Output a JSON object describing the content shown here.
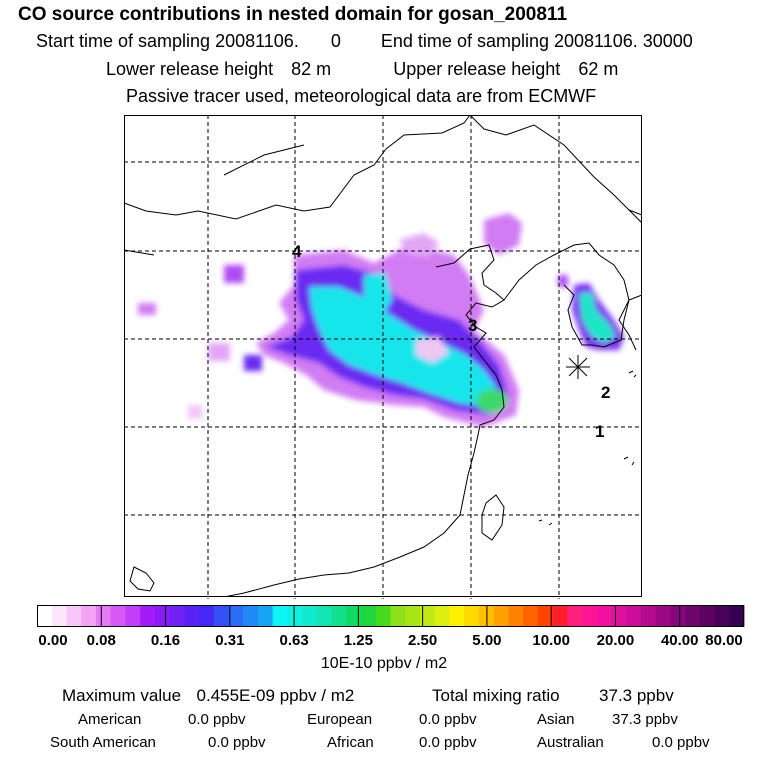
{
  "header": {
    "title": "CO  source contributions in nested domain for gosan_200811",
    "start_label": "Start time of sampling 20081106.",
    "start_value": "0",
    "end_label": "End time of sampling 20081106. 30000",
    "lower_label": "Lower release height",
    "lower_value": "82 m",
    "upper_label": "Upper release height",
    "upper_value": "62 m",
    "tracer_note": "Passive tracer used, meteorological data are from ECMWF"
  },
  "map": {
    "labels": [
      {
        "text": "4"
      },
      {
        "text": "3"
      },
      {
        "text": "2"
      },
      {
        "text": "1"
      }
    ],
    "receptor_marker": "asterisk-icon",
    "grid": "dashed"
  },
  "colorbar": {
    "tick_labels": [
      "0.00",
      "0.08",
      "0.16",
      "0.31",
      "0.63",
      "1.25",
      "2.50",
      "5.00",
      "10.00",
      "20.00",
      "40.00",
      "80.00"
    ],
    "units": "10E-10 ppbv / m2",
    "colors": [
      "#ffffff",
      "#fde6fd",
      "#f8c7f8",
      "#f3a4f3",
      "#e679f6",
      "#d659f6",
      "#c23ff8",
      "#a41bf6",
      "#8a1af7",
      "#7120f6",
      "#5a23f6",
      "#4428f6",
      "#3350f6",
      "#2a6ef6",
      "#1f8af6",
      "#17a6f6",
      "#0ff5f5",
      "#0ff0e0",
      "#10ebcd",
      "#12e5b5",
      "#12e08c",
      "#10dc62",
      "#1ed63d",
      "#46d91c",
      "#8ee018",
      "#a6e414",
      "#c2e812",
      "#dcef0f",
      "#fff200",
      "#ffd900",
      "#ffbf00",
      "#ffa100",
      "#ff8300",
      "#ff6300",
      "#ff4300",
      "#ff1f2a",
      "#ff1f7d",
      "#ff1593",
      "#f0129e",
      "#e0109e",
      "#cc0d99",
      "#b40b8f",
      "#9c0985",
      "#85077b",
      "#70056e",
      "#5c0363",
      "#48025a",
      "#360050"
    ]
  },
  "stats": {
    "max_label": "Maximum value",
    "max_value": "0.455E-09 ppbv / m2",
    "total_label": "Total mixing ratio",
    "total_value": "37.3 ppbv",
    "regions": [
      {
        "name": "American",
        "value": "0.0 ppbv"
      },
      {
        "name": "European",
        "value": "0.0 ppbv"
      },
      {
        "name": "Asian",
        "value": "37.3 ppbv"
      },
      {
        "name": "South American",
        "value": "0.0 ppbv"
      },
      {
        "name": "African",
        "value": "0.0 ppbv"
      },
      {
        "name": "Australian",
        "value": "0.0 ppbv"
      }
    ]
  }
}
